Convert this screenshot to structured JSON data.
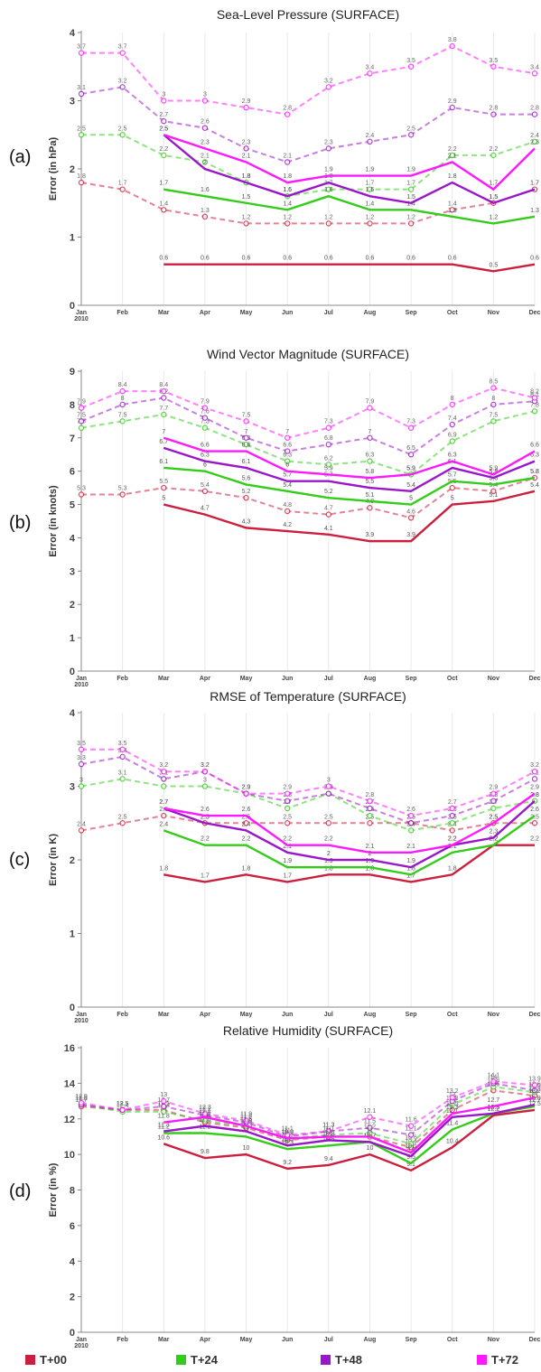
{
  "months": [
    "Jan",
    "Feb",
    "Mar",
    "Apr",
    "May",
    "Jun",
    "Jul",
    "Aug",
    "Sep",
    "Oct",
    "Nov",
    "Dec"
  ],
  "first_month_year": "2010",
  "colors": {
    "T+00": "#cc1f3f",
    "T+24": "#33cc1a",
    "T+48": "#9a16c9",
    "T+72": "#ff19ff"
  },
  "legend": [
    "T+00",
    "T+24",
    "T+48",
    "T+72"
  ],
  "chart_data": [
    {
      "type": "line",
      "panel": "(a)",
      "title": "Sea-Level Pressure (SURFACE)",
      "ylabel": "Error (in hPa)",
      "ylim": [
        0,
        4
      ],
      "yticks": [
        0,
        1,
        2,
        3,
        4
      ],
      "solid": [
        {
          "lead": "T+00",
          "values": [
            null,
            null,
            0.6,
            0.6,
            0.6,
            0.6,
            0.6,
            0.6,
            0.6,
            0.6,
            0.5,
            0.6
          ]
        },
        {
          "lead": "T+24",
          "values": [
            null,
            null,
            1.7,
            1.6,
            1.5,
            1.4,
            1.6,
            1.4,
            1.4,
            1.3,
            1.2,
            1.3
          ]
        },
        {
          "lead": "T+48",
          "values": [
            null,
            null,
            2.5,
            2.0,
            1.8,
            1.6,
            1.8,
            1.6,
            1.5,
            1.8,
            1.5,
            1.7
          ]
        },
        {
          "lead": "T+72",
          "values": [
            null,
            null,
            2.5,
            2.3,
            2.1,
            1.8,
            1.9,
            1.9,
            1.9,
            2.1,
            1.7,
            2.3
          ]
        }
      ],
      "dashed": [
        {
          "lead": "T+00",
          "values": [
            1.8,
            1.7,
            1.4,
            1.3,
            1.2,
            1.2,
            1.2,
            1.2,
            1.2,
            1.4,
            1.5,
            1.7
          ]
        },
        {
          "lead": "T+24",
          "values": [
            2.5,
            2.5,
            2.2,
            2.1,
            1.8,
            1.6,
            1.7,
            1.7,
            1.7,
            2.2,
            2.2,
            2.4
          ]
        },
        {
          "lead": "T+48",
          "values": [
            3.1,
            3.2,
            2.7,
            2.6,
            2.3,
            2.1,
            2.3,
            2.4,
            2.5,
            2.9,
            2.8,
            2.8
          ]
        },
        {
          "lead": "T+72",
          "values": [
            3.7,
            3.7,
            3.0,
            3.0,
            2.9,
            2.8,
            3.2,
            3.4,
            3.5,
            3.8,
            3.5,
            3.4
          ]
        }
      ]
    },
    {
      "type": "line",
      "panel": "(b)",
      "title": "Wind Vector Magnitude (SURFACE)",
      "ylabel": "Error (in knots)",
      "ylim": [
        0,
        9
      ],
      "yticks": [
        0,
        1,
        2,
        3,
        4,
        5,
        6,
        7,
        8,
        9
      ],
      "solid": [
        {
          "lead": "T+00",
          "values": [
            null,
            null,
            5.0,
            4.7,
            4.3,
            4.2,
            4.1,
            3.9,
            3.9,
            5.0,
            5.1,
            5.4
          ]
        },
        {
          "lead": "T+24",
          "values": [
            null,
            null,
            6.1,
            6.0,
            5.6,
            5.4,
            5.2,
            5.1,
            5.0,
            5.7,
            5.6,
            5.8
          ]
        },
        {
          "lead": "T+48",
          "values": [
            null,
            null,
            6.7,
            6.3,
            6.1,
            5.7,
            5.7,
            5.5,
            5.4,
            6.1,
            5.8,
            6.3
          ]
        },
        {
          "lead": "T+72",
          "values": [
            null,
            null,
            7.0,
            6.6,
            6.6,
            6.0,
            5.9,
            5.8,
            5.9,
            6.3,
            5.9,
            6.6
          ]
        }
      ],
      "dashed": [
        {
          "lead": "T+00",
          "values": [
            5.3,
            5.3,
            5.5,
            5.4,
            5.2,
            4.8,
            4.7,
            4.9,
            4.6,
            5.5,
            5.4,
            5.8
          ]
        },
        {
          "lead": "T+24",
          "values": [
            7.3,
            7.5,
            7.7,
            7.3,
            6.8,
            6.3,
            6.2,
            6.3,
            5.9,
            6.9,
            7.5,
            7.8
          ]
        },
        {
          "lead": "T+48",
          "values": [
            7.5,
            8.0,
            8.2,
            7.6,
            7.0,
            6.6,
            6.8,
            7.0,
            6.5,
            7.4,
            8.0,
            8.1
          ]
        },
        {
          "lead": "T+72",
          "values": [
            7.9,
            8.4,
            8.4,
            7.9,
            7.5,
            7.0,
            7.3,
            7.9,
            7.3,
            8.0,
            8.5,
            8.2
          ]
        }
      ]
    },
    {
      "type": "line",
      "panel": "(c)",
      "title": "RMSE of Temperature (SURFACE)",
      "ylabel": "Error (in K)",
      "ylim": [
        0,
        4
      ],
      "yticks": [
        0,
        1,
        2,
        3,
        4
      ],
      "solid": [
        {
          "lead": "T+00",
          "values": [
            null,
            null,
            1.8,
            1.7,
            1.8,
            1.7,
            1.8,
            1.8,
            1.7,
            1.8,
            2.2,
            2.2
          ]
        },
        {
          "lead": "T+24",
          "values": [
            null,
            null,
            2.4,
            2.2,
            2.2,
            1.9,
            1.9,
            1.9,
            1.8,
            2.1,
            2.2,
            2.6
          ]
        },
        {
          "lead": "T+48",
          "values": [
            null,
            null,
            2.7,
            2.5,
            2.4,
            2.1,
            2.0,
            2.0,
            1.9,
            2.2,
            2.3,
            2.8
          ]
        },
        {
          "lead": "T+72",
          "values": [
            null,
            null,
            2.7,
            2.6,
            2.6,
            2.2,
            2.2,
            2.1,
            2.1,
            2.2,
            2.5,
            2.9
          ]
        }
      ],
      "dashed": [
        {
          "lead": "T+00",
          "values": [
            2.4,
            2.5,
            2.6,
            2.5,
            2.5,
            2.5,
            2.5,
            2.5,
            2.5,
            2.4,
            2.5,
            2.5
          ]
        },
        {
          "lead": "T+24",
          "values": [
            3.0,
            3.1,
            3.0,
            3.0,
            2.9,
            2.7,
            2.9,
            2.6,
            2.4,
            2.5,
            2.7,
            2.8
          ]
        },
        {
          "lead": "T+48",
          "values": [
            3.3,
            3.4,
            3.1,
            3.2,
            2.9,
            2.8,
            2.9,
            2.7,
            2.5,
            2.6,
            2.8,
            3.1
          ]
        },
        {
          "lead": "T+72",
          "values": [
            3.5,
            3.5,
            3.2,
            3.2,
            2.9,
            2.9,
            3.0,
            2.8,
            2.6,
            2.7,
            2.9,
            3.2
          ]
        }
      ]
    },
    {
      "type": "line",
      "panel": "(d)",
      "title": "Relative Humidity (SURFACE)",
      "ylabel": "Error (in %)",
      "ylim": [
        0,
        16
      ],
      "yticks": [
        0,
        2,
        4,
        6,
        8,
        10,
        12,
        14,
        16
      ],
      "solid": [
        {
          "lead": "T+00",
          "values": [
            null,
            null,
            10.6,
            9.8,
            10.0,
            9.2,
            9.4,
            10.0,
            9.1,
            10.4,
            12.2,
            12.5
          ]
        },
        {
          "lead": "T+24",
          "values": [
            null,
            null,
            11.2,
            11.2,
            11.0,
            10.3,
            10.5,
            10.7,
            9.5,
            11.4,
            12.3,
            12.7
          ]
        },
        {
          "lead": "T+48",
          "values": [
            null,
            null,
            11.3,
            11.6,
            11.3,
            10.5,
            10.8,
            10.7,
            9.9,
            12.1,
            12.3,
            12.8
          ]
        },
        {
          "lead": "T+72",
          "values": [
            null,
            null,
            11.8,
            12.1,
            11.6,
            10.9,
            11.0,
            11.0,
            10.1,
            12.3,
            12.7,
            13.2
          ]
        }
      ],
      "dashed": [
        {
          "lead": "T+00",
          "values": [
            12.7,
            12.5,
            12.5,
            11.8,
            11.5,
            10.8,
            11.0,
            11.0,
            10.4,
            12.5,
            13.6,
            13.3
          ]
        },
        {
          "lead": "T+24",
          "values": [
            12.8,
            12.4,
            12.4,
            11.9,
            11.6,
            10.9,
            11.1,
            11.2,
            10.6,
            12.8,
            13.8,
            13.5
          ]
        },
        {
          "lead": "T+48",
          "values": [
            12.8,
            12.5,
            12.7,
            12.2,
            11.8,
            11.0,
            11.3,
            11.5,
            11.1,
            13.0,
            14.0,
            13.6
          ]
        },
        {
          "lead": "T+72",
          "values": [
            12.9,
            12.5,
            13.0,
            12.3,
            11.9,
            11.1,
            11.3,
            12.1,
            11.6,
            13.2,
            14.1,
            13.9
          ]
        }
      ]
    }
  ]
}
